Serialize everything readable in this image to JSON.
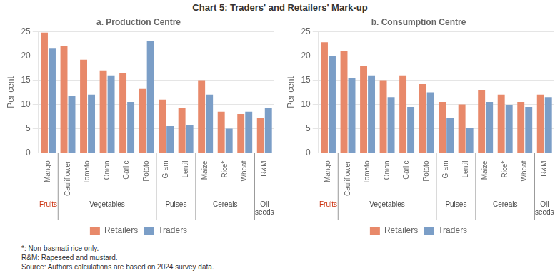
{
  "title": "Chart 5: Traders' and Retailers' Mark-up",
  "annotations": [
    "*: Non-basmati rice only.",
    "R&M: Rapeseed and mustard.",
    "Source: Authors calculations are based on 2024 survey data."
  ],
  "chart_data": [
    {
      "type": "bar",
      "title": "a. Production Centre",
      "categories": [
        "Mango",
        "Cauliflower",
        "Tomato",
        "Onion",
        "Garlic",
        "Potato",
        "Gram",
        "Lentil",
        "Maize",
        "Rice*",
        "Wheat",
        "R&M"
      ],
      "series": [
        {
          "name": "Retailers",
          "color": "#E8896A",
          "values": [
            24.8,
            22.0,
            19.2,
            17.0,
            16.5,
            13.2,
            11.0,
            9.2,
            15.0,
            8.5,
            8.0,
            7.2
          ]
        },
        {
          "name": "Traders",
          "color": "#7B9EC7",
          "values": [
            21.5,
            11.8,
            12.0,
            16.0,
            10.5,
            23.0,
            5.5,
            5.8,
            12.0,
            5.0,
            8.5,
            9.2
          ]
        }
      ],
      "ylabel": "Per cent",
      "ylim": [
        0,
        25
      ],
      "yticks": [
        0,
        5,
        10,
        15,
        20,
        25
      ],
      "grid": true,
      "legend": "bottom",
      "annotations": [
        {
          "text": "Fruits",
          "from": "Mango",
          "to": "Mango",
          "color": "#CC3311"
        },
        {
          "text": "Vegetables",
          "from": "Cauliflower",
          "to": "Potato"
        },
        {
          "text": "Pulses",
          "from": "Gram",
          "to": "Lentil"
        },
        {
          "text": "Cereals",
          "from": "Maize",
          "to": "Wheat"
        },
        {
          "text": "Oil\nseeds",
          "from": "R&M",
          "to": "R&M"
        }
      ]
    },
    {
      "type": "bar",
      "title": "b. Consumption Centre",
      "categories": [
        "Mango",
        "Cauliflower",
        "Tomato",
        "Onion",
        "Garlic",
        "Potato",
        "Gram",
        "Lentil",
        "Maize",
        "Rice*",
        "Wheat",
        "R&M"
      ],
      "series": [
        {
          "name": "Retailers",
          "color": "#E8896A",
          "values": [
            22.8,
            21.0,
            18.0,
            15.0,
            16.0,
            14.2,
            10.5,
            10.0,
            13.0,
            12.0,
            10.5,
            12.0
          ]
        },
        {
          "name": "Traders",
          "color": "#7B9EC7",
          "values": [
            20.0,
            15.5,
            16.0,
            11.5,
            9.5,
            12.5,
            7.2,
            5.2,
            10.5,
            9.8,
            9.5,
            11.5
          ]
        }
      ],
      "ylabel": "Per cent",
      "ylim": [
        0,
        25
      ],
      "yticks": [
        0,
        5,
        10,
        15,
        20,
        25
      ],
      "grid": true,
      "legend": "bottom",
      "annotations": [
        {
          "text": "Fruits",
          "from": "Mango",
          "to": "Mango",
          "color": "#CC3311"
        },
        {
          "text": "Vegetables",
          "from": "Cauliflower",
          "to": "Potato"
        },
        {
          "text": "Pulses",
          "from": "Gram",
          "to": "Lentil"
        },
        {
          "text": "Cereals",
          "from": "Maize",
          "to": "Wheat"
        },
        {
          "text": "Oil\nseeds",
          "from": "R&M",
          "to": "R&M"
        }
      ]
    }
  ]
}
